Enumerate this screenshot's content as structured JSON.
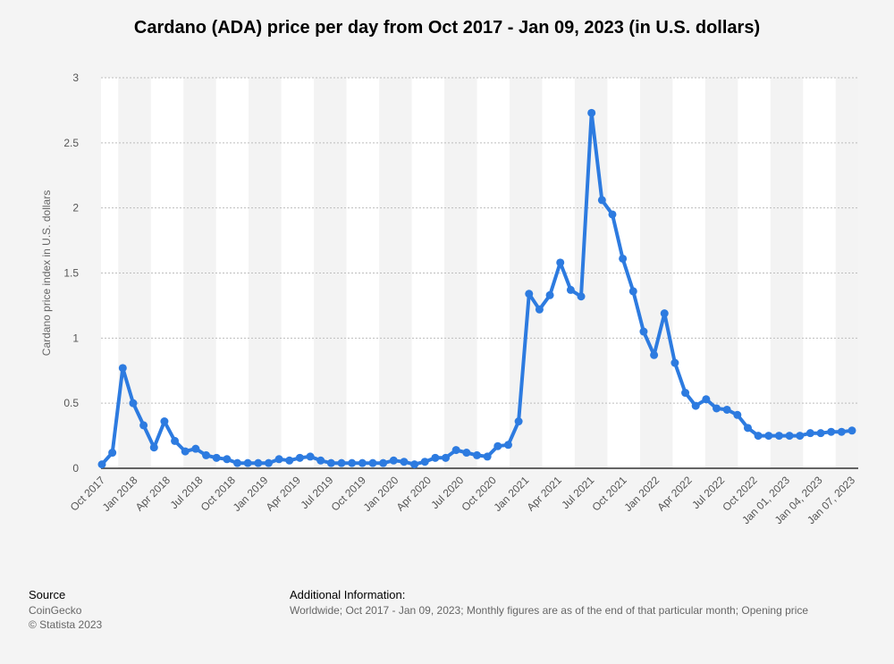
{
  "chart_data": {
    "type": "line",
    "title": "Cardano (ADA) price per day from Oct 2017 - Jan 09, 2023 (in U.S. dollars)",
    "ylabel": "Cardano price index in U.S. dollars",
    "xlabel": "",
    "ylim": [
      0,
      3
    ],
    "yticks": [
      "0",
      "0.5",
      "1",
      "1.5",
      "2",
      "2.5",
      "3"
    ],
    "grid": true,
    "series_color": "#2d7be0",
    "x_tick_labels": [
      "Oct 2017",
      "Jan 2018",
      "Apr 2018",
      "Jul 2018",
      "Oct 2018",
      "Jan 2019",
      "Apr 2019",
      "Jul 2019",
      "Oct 2019",
      "Jan 2020",
      "Apr 2020",
      "Jul 2020",
      "Oct 2020",
      "Jan 2021",
      "Apr 2021",
      "Jul 2021",
      "Oct 2021",
      "Jan 2022",
      "Apr 2022",
      "Jul 2022",
      "Oct 2022",
      "Jan 01, 2023",
      "Jan 04, 2023",
      "Jan 07, 2023"
    ],
    "values": [
      0.03,
      0.12,
      0.77,
      0.5,
      0.33,
      0.16,
      0.36,
      0.21,
      0.13,
      0.15,
      0.1,
      0.08,
      0.07,
      0.04,
      0.04,
      0.04,
      0.04,
      0.07,
      0.06,
      0.08,
      0.09,
      0.06,
      0.04,
      0.04,
      0.04,
      0.04,
      0.04,
      0.04,
      0.06,
      0.05,
      0.03,
      0.05,
      0.08,
      0.08,
      0.14,
      0.12,
      0.1,
      0.09,
      0.17,
      0.18,
      0.36,
      1.34,
      1.22,
      1.33,
      1.58,
      1.37,
      1.32,
      2.73,
      2.06,
      1.95,
      1.61,
      1.36,
      1.05,
      0.87,
      1.19,
      0.81,
      0.58,
      0.48,
      0.53,
      0.46,
      0.45,
      0.41,
      0.31,
      0.25,
      0.25,
      0.25,
      0.25,
      0.25,
      0.27,
      0.27,
      0.28,
      0.28,
      0.29
    ]
  },
  "footer": {
    "source_heading": "Source",
    "source_lines": [
      "CoinGecko",
      "© Statista 2023"
    ],
    "info_heading": "Additional Information:",
    "info_text": "Worldwide; Oct 2017 - Jan 09, 2023; Monthly figures are as of the end of that particular month; Opening price"
  }
}
